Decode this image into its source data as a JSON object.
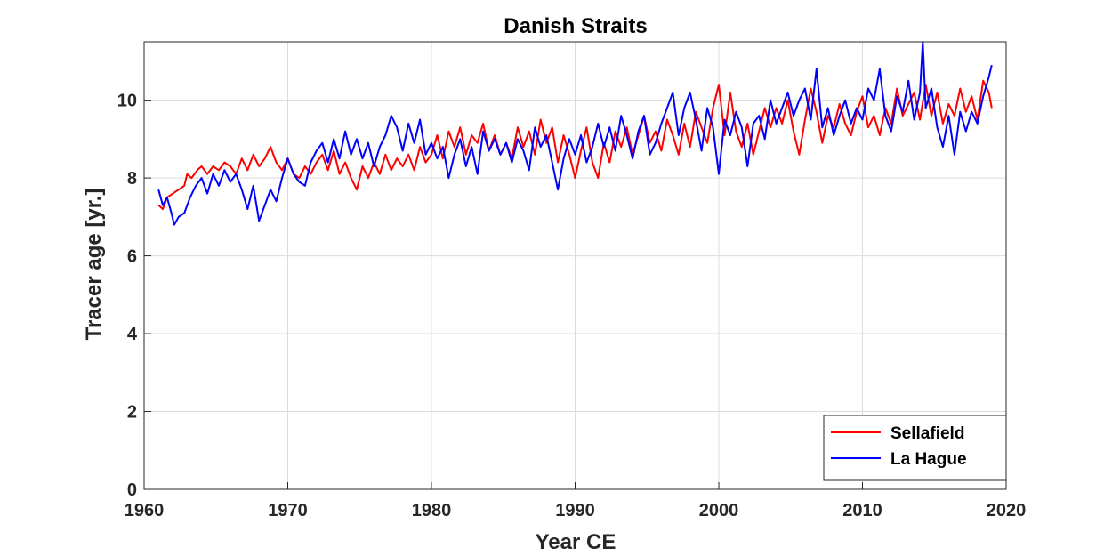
{
  "chart_data": {
    "type": "line",
    "title": "Danish Straits",
    "xlabel": "Year CE",
    "ylabel": "Tracer age [yr.]",
    "xlim": [
      1960,
      2020
    ],
    "ylim": [
      0,
      11.5
    ],
    "xticks": [
      1960,
      1970,
      1980,
      1990,
      2000,
      2010,
      2020
    ],
    "yticks": [
      0,
      2,
      4,
      6,
      8,
      10
    ],
    "grid": true,
    "legend_position": "bottom-right",
    "colors": {
      "Sellafield": "#ff0000",
      "La Hague": "#0000ff"
    },
    "series": [
      {
        "name": "Sellafield",
        "color": "#ff0000",
        "x": [
          1961.0,
          1961.3,
          1961.6,
          1962.0,
          1962.4,
          1962.8,
          1963.0,
          1963.3,
          1963.7,
          1964.0,
          1964.4,
          1964.8,
          1965.2,
          1965.6,
          1966.0,
          1966.4,
          1966.8,
          1967.2,
          1967.6,
          1968.0,
          1968.4,
          1968.8,
          1969.2,
          1969.6,
          1970.0,
          1970.4,
          1970.8,
          1971.2,
          1971.6,
          1972.0,
          1972.4,
          1972.8,
          1973.2,
          1973.6,
          1974.0,
          1974.4,
          1974.8,
          1975.2,
          1975.6,
          1976.0,
          1976.4,
          1976.8,
          1977.2,
          1977.6,
          1978.0,
          1978.4,
          1978.8,
          1979.2,
          1979.6,
          1980.0,
          1980.4,
          1980.8,
          1981.2,
          1981.6,
          1982.0,
          1982.4,
          1982.8,
          1983.2,
          1983.6,
          1984.0,
          1984.4,
          1984.8,
          1985.2,
          1985.6,
          1986.0,
          1986.4,
          1986.8,
          1987.2,
          1987.6,
          1988.0,
          1988.4,
          1988.8,
          1989.2,
          1989.6,
          1990.0,
          1990.4,
          1990.8,
          1991.2,
          1991.6,
          1992.0,
          1992.4,
          1992.8,
          1993.2,
          1993.6,
          1994.0,
          1994.4,
          1994.8,
          1995.2,
          1995.6,
          1996.0,
          1996.4,
          1996.8,
          1997.2,
          1997.6,
          1998.0,
          1998.4,
          1998.8,
          1999.2,
          1999.6,
          2000.0,
          2000.4,
          2000.8,
          2001.2,
          2001.6,
          2002.0,
          2002.4,
          2002.8,
          2003.2,
          2003.6,
          2004.0,
          2004.4,
          2004.8,
          2005.2,
          2005.6,
          2006.0,
          2006.4,
          2006.8,
          2007.2,
          2007.6,
          2008.0,
          2008.4,
          2008.8,
          2009.2,
          2009.6,
          2010.0,
          2010.4,
          2010.8,
          2011.2,
          2011.6,
          2012.0,
          2012.4,
          2012.8,
          2013.2,
          2013.6,
          2014.0,
          2014.4,
          2014.8,
          2015.2,
          2015.6,
          2016.0,
          2016.4,
          2016.8,
          2017.2,
          2017.6,
          2018.0,
          2018.4,
          2018.8,
          2019.0
        ],
        "values": [
          7.3,
          7.2,
          7.5,
          7.6,
          7.7,
          7.8,
          8.1,
          8.0,
          8.2,
          8.3,
          8.1,
          8.3,
          8.2,
          8.4,
          8.3,
          8.1,
          8.5,
          8.2,
          8.6,
          8.3,
          8.5,
          8.8,
          8.4,
          8.2,
          8.5,
          8.1,
          8.0,
          8.3,
          8.1,
          8.4,
          8.6,
          8.2,
          8.7,
          8.1,
          8.4,
          8.0,
          7.7,
          8.3,
          8.0,
          8.4,
          8.1,
          8.6,
          8.2,
          8.5,
          8.3,
          8.6,
          8.2,
          8.8,
          8.4,
          8.6,
          9.1,
          8.5,
          9.2,
          8.8,
          9.3,
          8.6,
          9.1,
          8.9,
          9.4,
          8.7,
          9.1,
          8.6,
          8.9,
          8.5,
          9.3,
          8.8,
          9.2,
          8.6,
          9.5,
          8.9,
          9.3,
          8.4,
          9.1,
          8.6,
          8.0,
          8.7,
          9.3,
          8.4,
          8.0,
          8.9,
          8.4,
          9.2,
          8.8,
          9.3,
          8.6,
          9.1,
          9.6,
          8.9,
          9.2,
          8.7,
          9.5,
          9.1,
          8.6,
          9.4,
          8.8,
          9.7,
          9.3,
          8.9,
          9.8,
          10.4,
          9.1,
          10.2,
          9.2,
          8.8,
          9.4,
          8.6,
          9.2,
          9.8,
          9.3,
          9.8,
          9.4,
          10.0,
          9.2,
          8.6,
          9.5,
          10.3,
          9.7,
          8.9,
          9.6,
          9.3,
          9.9,
          9.4,
          9.1,
          9.7,
          10.1,
          9.3,
          9.6,
          9.1,
          9.8,
          9.4,
          10.3,
          9.6,
          9.9,
          10.2,
          9.5,
          10.4,
          9.6,
          10.2,
          9.4,
          9.9,
          9.6,
          10.3,
          9.7,
          10.1,
          9.5,
          10.5,
          10.2,
          9.8
        ]
      },
      {
        "name": "La Hague",
        "color": "#0000ff",
        "x": [
          1961.0,
          1961.3,
          1961.6,
          1961.9,
          1962.1,
          1962.4,
          1962.8,
          1963.2,
          1963.6,
          1964.0,
          1964.4,
          1964.8,
          1965.2,
          1965.6,
          1966.0,
          1966.4,
          1966.8,
          1967.2,
          1967.6,
          1968.0,
          1968.4,
          1968.8,
          1969.2,
          1969.6,
          1970.0,
          1970.4,
          1970.8,
          1971.2,
          1971.6,
          1972.0,
          1972.4,
          1972.8,
          1973.2,
          1973.6,
          1974.0,
          1974.4,
          1974.8,
          1975.2,
          1975.6,
          1976.0,
          1976.4,
          1976.8,
          1977.2,
          1977.6,
          1978.0,
          1978.4,
          1978.8,
          1979.2,
          1979.6,
          1980.0,
          1980.4,
          1980.8,
          1981.2,
          1981.6,
          1982.0,
          1982.4,
          1982.8,
          1983.2,
          1983.6,
          1984.0,
          1984.4,
          1984.8,
          1985.2,
          1985.6,
          1986.0,
          1986.4,
          1986.8,
          1987.2,
          1987.6,
          1988.0,
          1988.4,
          1988.8,
          1989.2,
          1989.6,
          1990.0,
          1990.4,
          1990.8,
          1991.2,
          1991.6,
          1992.0,
          1992.4,
          1992.8,
          1993.2,
          1993.6,
          1994.0,
          1994.4,
          1994.8,
          1995.2,
          1995.6,
          1996.0,
          1996.4,
          1996.8,
          1997.2,
          1997.6,
          1998.0,
          1998.4,
          1998.8,
          1999.2,
          1999.6,
          2000.0,
          2000.4,
          2000.8,
          2001.2,
          2001.6,
          2002.0,
          2002.4,
          2002.8,
          2003.2,
          2003.6,
          2004.0,
          2004.4,
          2004.8,
          2005.2,
          2005.6,
          2006.0,
          2006.4,
          2006.8,
          2007.2,
          2007.6,
          2008.0,
          2008.4,
          2008.8,
          2009.2,
          2009.6,
          2010.0,
          2010.4,
          2010.8,
          2011.2,
          2011.6,
          2012.0,
          2012.4,
          2012.8,
          2013.2,
          2013.6,
          2014.0,
          2014.2,
          2014.4,
          2014.8,
          2015.2,
          2015.6,
          2016.0,
          2016.4,
          2016.8,
          2017.2,
          2017.6,
          2018.0,
          2018.4,
          2018.8,
          2019.0
        ],
        "values": [
          7.7,
          7.3,
          7.5,
          7.1,
          6.8,
          7.0,
          7.1,
          7.5,
          7.8,
          8.0,
          7.6,
          8.1,
          7.8,
          8.2,
          7.9,
          8.1,
          7.7,
          7.2,
          7.8,
          6.9,
          7.3,
          7.7,
          7.4,
          8.0,
          8.5,
          8.1,
          7.9,
          7.8,
          8.4,
          8.7,
          8.9,
          8.4,
          9.0,
          8.5,
          9.2,
          8.6,
          9.0,
          8.5,
          8.9,
          8.3,
          8.8,
          9.1,
          9.6,
          9.3,
          8.7,
          9.4,
          8.9,
          9.5,
          8.6,
          8.9,
          8.5,
          8.8,
          8.0,
          8.6,
          9.0,
          8.3,
          8.8,
          8.1,
          9.2,
          8.7,
          9.0,
          8.6,
          8.9,
          8.4,
          9.0,
          8.7,
          8.2,
          9.3,
          8.8,
          9.1,
          8.4,
          7.7,
          8.5,
          9.0,
          8.6,
          9.1,
          8.4,
          8.8,
          9.4,
          8.8,
          9.3,
          8.7,
          9.6,
          9.1,
          8.5,
          9.2,
          9.6,
          8.6,
          8.9,
          9.4,
          9.8,
          10.2,
          9.1,
          9.8,
          10.2,
          9.5,
          8.7,
          9.8,
          9.3,
          8.1,
          9.5,
          9.1,
          9.7,
          9.3,
          8.3,
          9.4,
          9.6,
          9.0,
          10.0,
          9.4,
          9.8,
          10.2,
          9.6,
          10.0,
          10.3,
          9.5,
          10.8,
          9.3,
          9.8,
          9.1,
          9.6,
          10.0,
          9.4,
          9.8,
          9.5,
          10.3,
          10.0,
          10.8,
          9.6,
          9.2,
          10.1,
          9.7,
          10.5,
          9.5,
          10.2,
          11.5,
          9.8,
          10.3,
          9.3,
          8.8,
          9.6,
          8.6,
          9.7,
          9.2,
          9.7,
          9.4,
          10.1,
          10.6,
          10.9
        ]
      }
    ]
  }
}
